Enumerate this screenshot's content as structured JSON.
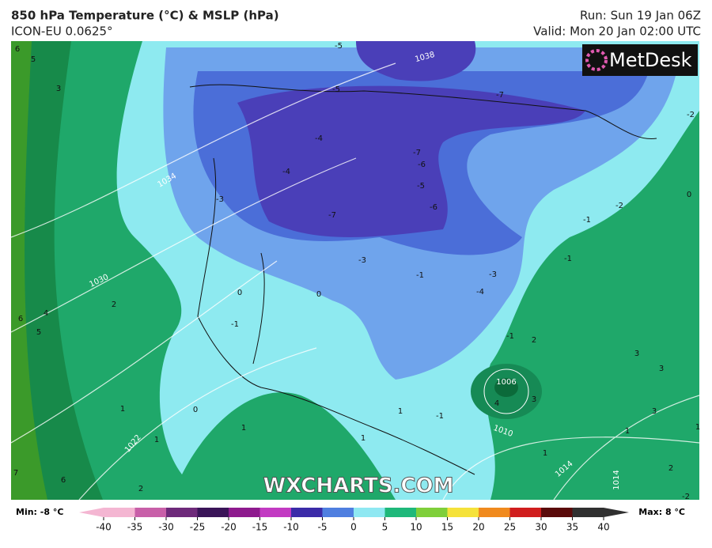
{
  "header": {
    "title": "850 hPa Temperature (°C) & MSLP (hPa)",
    "model": "ICON-EU 0.0625°",
    "run": "Run: Sun 19 Jan 06Z",
    "valid": "Valid: Mon 20 Jan 02:00 UTC"
  },
  "logo": "MetDesk",
  "watermark": "WXCHARTS.COM",
  "isobar_labels": [
    1038,
    1034,
    1030,
    1022,
    1006,
    1010,
    1014,
    1014
  ],
  "temperature_labels": [
    -5,
    -5,
    -7,
    -2,
    -4,
    -4,
    -7,
    -6,
    -5,
    -6,
    -7,
    -3,
    -2,
    -1,
    0,
    -1,
    -3,
    -1,
    -3,
    -4,
    0,
    0,
    -1,
    2,
    4,
    5,
    6,
    3,
    5,
    6,
    2,
    3,
    3,
    3,
    4,
    3,
    1,
    0,
    1,
    1,
    1,
    -1,
    1,
    1,
    1,
    2,
    -2,
    6,
    7,
    2,
    1,
    -1
  ],
  "colorbar": {
    "min_label": "Min: -8 °C",
    "max_label": "Max: 8 °C",
    "ticks": [
      -40,
      -35,
      -30,
      -25,
      -20,
      -15,
      -10,
      -5,
      0,
      5,
      10,
      15,
      20,
      25,
      30,
      35,
      40
    ],
    "colors": [
      "#f4b6d2",
      "#c85fa8",
      "#6e2a7a",
      "#3a1458",
      "#8e1a8e",
      "#c23ac2",
      "#3b2ba8",
      "#4f7fe0",
      "#8fe8f2",
      "#1fb87a",
      "#7fcf3a",
      "#f5e23a",
      "#f08a1e",
      "#d01e1e",
      "#5a0a0a",
      "#303030"
    ]
  }
}
